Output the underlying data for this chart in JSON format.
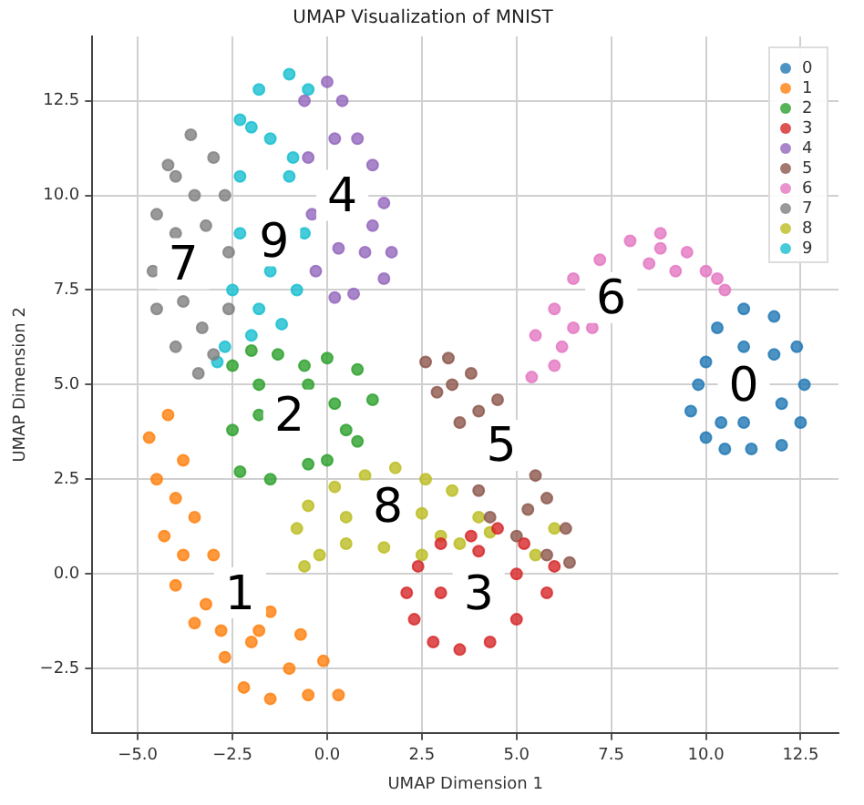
{
  "chart_data": {
    "type": "scatter",
    "title": "UMAP Visualization of MNIST",
    "xlabel": "UMAP Dimension 1",
    "ylabel": "UMAP Dimension 2",
    "xlim": [
      -6.2,
      13.5
    ],
    "ylim": [
      -4.2,
      14.2
    ],
    "xticks": [
      {
        "value": -5,
        "label": "−5.0"
      },
      {
        "value": -2.5,
        "label": "−2.5"
      },
      {
        "value": 0,
        "label": "0.0"
      },
      {
        "value": 2.5,
        "label": "2.5"
      },
      {
        "value": 5,
        "label": "5.0"
      },
      {
        "value": 7.5,
        "label": "7.5"
      },
      {
        "value": 10,
        "label": "10.0"
      },
      {
        "value": 12.5,
        "label": "12.5"
      }
    ],
    "yticks": [
      {
        "value": -2.5,
        "label": "−2.5"
      },
      {
        "value": 0,
        "label": "0.0"
      },
      {
        "value": 2.5,
        "label": "2.5"
      },
      {
        "value": 5,
        "label": "5.0"
      },
      {
        "value": 7.5,
        "label": "7.5"
      },
      {
        "value": 10,
        "label": "10.0"
      },
      {
        "value": 12.5,
        "label": "12.5"
      }
    ],
    "grid": true,
    "legend": "top right",
    "marker": "circle",
    "series": [
      {
        "name": "0",
        "color": "#1f77b4",
        "x": [
          9.6,
          10,
          10.5,
          11.2,
          12,
          12.5,
          12.6,
          12.4,
          11.8,
          11,
          10.3,
          10,
          9.8,
          11,
          12,
          11,
          11.8,
          10.4
        ],
        "values": [
          4.3,
          3.6,
          3.3,
          3.3,
          3.4,
          4,
          5,
          6,
          6.8,
          7,
          6.5,
          5.6,
          5,
          4,
          4.5,
          6,
          5.8,
          4
        ]
      },
      {
        "name": "1",
        "color": "#ff7f0e",
        "x": [
          -4.7,
          -4.2,
          -3.8,
          -3.5,
          -3,
          -1.5,
          -0.7,
          -0.1,
          0.3,
          -0.5,
          -1.5,
          -2.2,
          -2.7,
          -3.5,
          -4,
          -4.3,
          -4.5,
          -3.8,
          -4,
          -3.2,
          -2,
          -1,
          -1.8,
          -2.8
        ],
        "values": [
          3.6,
          4.2,
          3,
          1.5,
          0.5,
          -1,
          -1.6,
          -2.3,
          -3.2,
          -3.2,
          -3.3,
          -3,
          -2.2,
          -1.3,
          -0.3,
          1,
          2.5,
          0.5,
          2,
          -0.8,
          -1.8,
          -2.5,
          -1.5,
          -1.5
        ]
      },
      {
        "name": "2",
        "color": "#2ca02c",
        "x": [
          -2.5,
          -2,
          -1.3,
          -0.6,
          0,
          0.8,
          1.2,
          0.8,
          0,
          -0.5,
          -1.5,
          -2.3,
          -2.5,
          -1.8,
          0.2,
          -0.5,
          -1.8,
          0.5
        ],
        "values": [
          5.5,
          5.9,
          5.8,
          5.5,
          5.7,
          5.4,
          4.6,
          3.5,
          3,
          2.9,
          2.5,
          2.7,
          3.8,
          4.2,
          4.5,
          5,
          5,
          3.8
        ]
      },
      {
        "name": "3",
        "color": "#d62728",
        "x": [
          2.1,
          2.4,
          3,
          3.8,
          4.5,
          5.2,
          6,
          5.8,
          5,
          4.3,
          3.5,
          2.8,
          2.3,
          3,
          5,
          4
        ],
        "values": [
          -0.5,
          0.2,
          0.8,
          1,
          1.2,
          0.8,
          0.2,
          -0.5,
          -1.2,
          -1.8,
          -2,
          -1.8,
          -1.2,
          -0.5,
          0,
          0.6
        ]
      },
      {
        "name": "4",
        "color": "#9467bd",
        "x": [
          -0.6,
          0,
          0.4,
          0.8,
          1.2,
          1.5,
          1.7,
          1.5,
          0.7,
          0.2,
          -0.3,
          -0.4,
          -0.5,
          0.2,
          1,
          0.3,
          1.2
        ],
        "values": [
          12.5,
          13,
          12.5,
          11.5,
          10.8,
          9.8,
          8.5,
          7.8,
          7.4,
          7.3,
          8,
          9.5,
          11,
          11.5,
          8.5,
          8.6,
          9.2
        ]
      },
      {
        "name": "5",
        "color": "#8c564b",
        "x": [
          2.6,
          3.2,
          3.8,
          4.5,
          5.8,
          6.3,
          6.4,
          5.8,
          5,
          4.3,
          4,
          3.5,
          2.9,
          3.3,
          4,
          5.3,
          5.5
        ],
        "values": [
          5.6,
          5.7,
          5.3,
          4.6,
          2,
          1.2,
          0.3,
          0.5,
          1,
          1.5,
          2.2,
          4,
          4.8,
          5,
          4.3,
          1.7,
          2.6
        ]
      },
      {
        "name": "6",
        "color": "#e377c2",
        "x": [
          5.4,
          5.5,
          6,
          6.5,
          7.2,
          8,
          8.8,
          9.5,
          10,
          10.5,
          9.2,
          8.5,
          6.5,
          6,
          7,
          6.2,
          8.8,
          10.3
        ],
        "values": [
          5.2,
          6.3,
          7,
          7.8,
          8.3,
          8.8,
          9,
          8.5,
          8,
          7.5,
          8,
          8.2,
          6.5,
          5.5,
          6.5,
          6,
          8.6,
          7.8
        ]
      },
      {
        "name": "7",
        "color": "#7f7f7f",
        "x": [
          -4.6,
          -4.5,
          -4.2,
          -3.6,
          -3,
          -2.7,
          -2.6,
          -2.6,
          -3,
          -3.4,
          -4,
          -4.5,
          -4,
          -3.5,
          -3.8,
          -3.3,
          -4,
          -3.2
        ],
        "values": [
          8,
          9.5,
          10.8,
          11.6,
          11,
          10,
          8.5,
          7,
          5.8,
          5.3,
          6,
          7,
          9,
          10,
          7.2,
          6.5,
          10.5,
          9.2
        ]
      },
      {
        "name": "8",
        "color": "#bcbd22",
        "x": [
          -0.8,
          -0.5,
          0.2,
          1,
          1.8,
          2.6,
          3.3,
          4,
          4.3,
          3.5,
          2.5,
          1.5,
          0.5,
          -0.2,
          -0.6,
          0.5,
          2.5,
          3,
          6,
          5.5
        ],
        "values": [
          1.2,
          1.8,
          2.3,
          2.6,
          2.8,
          2.5,
          2.2,
          1.5,
          1.1,
          0.8,
          0.5,
          0.7,
          0.8,
          0.5,
          0.2,
          1.5,
          1.6,
          1,
          1.2,
          0.5
        ]
      },
      {
        "name": "9",
        "color": "#17becf",
        "x": [
          -2.3,
          -1.8,
          -1,
          -0.5,
          -0.9,
          -0.6,
          -0.8,
          -1.2,
          -2,
          -2.7,
          -2.9,
          -2.5,
          -2.3,
          -2.3,
          -1.5,
          -1.5,
          -1,
          -1.8,
          -2
        ],
        "values": [
          12,
          12.8,
          13.2,
          12.8,
          11,
          9,
          7.5,
          6.6,
          6.3,
          6,
          5.6,
          7.5,
          9,
          10.5,
          11.5,
          8,
          10.5,
          7,
          11.8
        ]
      }
    ],
    "annotations": [
      {
        "text": "0",
        "x": 11,
        "y": 5
      },
      {
        "text": "1",
        "x": -2.3,
        "y": -0.5
      },
      {
        "text": "2",
        "x": -1,
        "y": 4.2
      },
      {
        "text": "3",
        "x": 4,
        "y": -0.5
      },
      {
        "text": "4",
        "x": 0.4,
        "y": 10
      },
      {
        "text": "5",
        "x": 4.6,
        "y": 3.4
      },
      {
        "text": "6",
        "x": 7.5,
        "y": 7.3
      },
      {
        "text": "7",
        "x": -3.8,
        "y": 8.2
      },
      {
        "text": "8",
        "x": 1.6,
        "y": 1.8
      },
      {
        "text": "9",
        "x": -1.4,
        "y": 8.8
      }
    ]
  }
}
